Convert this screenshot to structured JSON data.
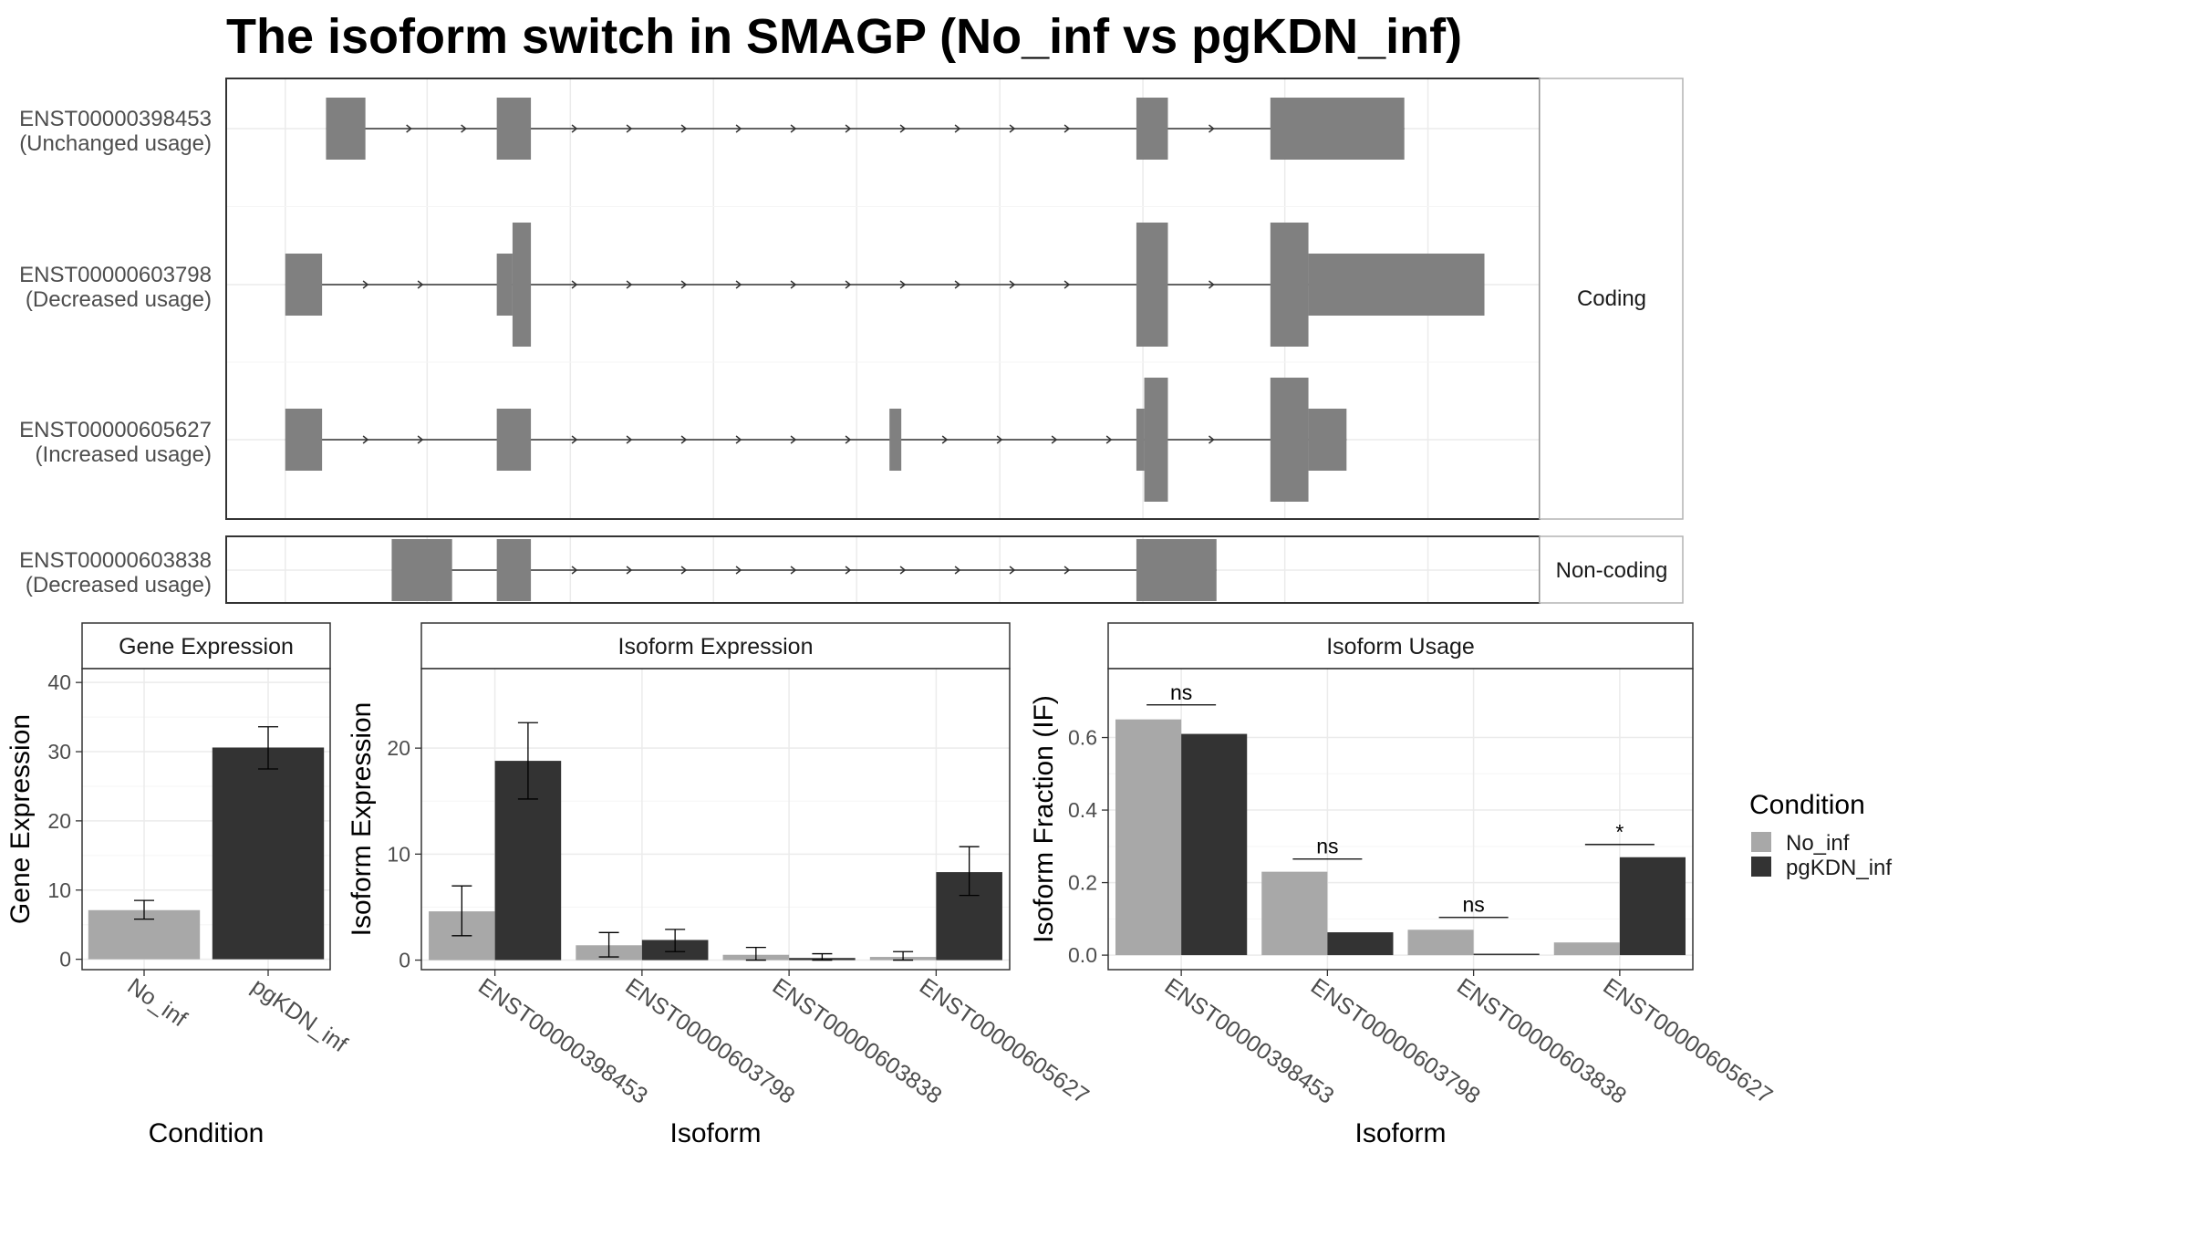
{
  "title": "The isoform switch in SMAGP (No_inf vs pgKDN_inf)",
  "colors": {
    "no_inf": "#a8a8a8",
    "pgkdn_inf": "#333333",
    "exon": "#808080",
    "grid": "#ebebeb",
    "border": "#333333",
    "strip_border": "#b3b3b3"
  },
  "structure": {
    "strips": {
      "coding": "Coding",
      "noncoding": "Non-coding"
    },
    "genome_range": [
      0,
      100
    ],
    "isoforms": [
      {
        "id": "ENST00000398453",
        "usage": "(Unchanged usage)",
        "group": "coding",
        "exons": [
          {
            "start": 7.6,
            "end": 10.6,
            "height": "utr"
          },
          {
            "start": 20.6,
            "end": 23.2,
            "height": "utr"
          },
          {
            "start": 69.3,
            "end": 71.7,
            "height": "utr"
          },
          {
            "start": 79.5,
            "end": 89.7,
            "height": "utr"
          }
        ]
      },
      {
        "id": "ENST00000603798",
        "usage": "(Decreased usage)",
        "group": "coding",
        "exons": [
          {
            "start": 4.5,
            "end": 7.3,
            "height": "utr"
          },
          {
            "start": 20.6,
            "end": 21.8,
            "height": "utr"
          },
          {
            "start": 21.8,
            "end": 23.2,
            "height": "cds"
          },
          {
            "start": 69.3,
            "end": 71.7,
            "height": "cds"
          },
          {
            "start": 79.5,
            "end": 82.4,
            "height": "cds"
          },
          {
            "start": 82.4,
            "end": 95.8,
            "height": "utr"
          }
        ]
      },
      {
        "id": "ENST00000605627",
        "usage": "(Increased usage)",
        "group": "coding",
        "exons": [
          {
            "start": 4.5,
            "end": 7.3,
            "height": "utr"
          },
          {
            "start": 20.6,
            "end": 23.2,
            "height": "utr"
          },
          {
            "start": 50.5,
            "end": 51.4,
            "height": "utr"
          },
          {
            "start": 69.3,
            "end": 69.9,
            "height": "utr"
          },
          {
            "start": 69.9,
            "end": 71.7,
            "height": "cds"
          },
          {
            "start": 79.5,
            "end": 82.4,
            "height": "cds"
          },
          {
            "start": 82.4,
            "end": 85.3,
            "height": "utr"
          }
        ]
      },
      {
        "id": "ENST00000603838",
        "usage": "(Decreased usage)",
        "group": "noncoding",
        "exons": [
          {
            "start": 12.6,
            "end": 17.2,
            "height": "utr"
          },
          {
            "start": 20.6,
            "end": 23.2,
            "height": "utr"
          },
          {
            "start": 69.3,
            "end": 75.4,
            "height": "utr"
          }
        ]
      }
    ]
  },
  "chart_data": [
    {
      "type": "bar",
      "title": "Gene Expression",
      "xlabel": "Condition",
      "ylabel": "Gene Expression",
      "ylim": [
        -1.5,
        42
      ],
      "yticks": [
        0,
        10,
        20,
        30,
        40
      ],
      "categories": [
        "No_inf",
        "pgKDN_inf"
      ],
      "series": [
        {
          "name": "No_inf",
          "values": [
            7.1,
            null
          ],
          "err_low": [
            5.8,
            null
          ],
          "err_high": [
            8.5,
            null
          ]
        },
        {
          "name": "pgKDN_inf",
          "values": [
            null,
            30.6
          ],
          "err_low": [
            null,
            27.5
          ],
          "err_high": [
            null,
            33.6
          ]
        }
      ]
    },
    {
      "type": "bar",
      "title": "Isoform Expression",
      "xlabel": "Isoform",
      "ylabel": "Isoform Expression",
      "ylim": [
        -0.9,
        27.5
      ],
      "yticks": [
        0,
        10,
        20
      ],
      "categories": [
        "ENST00000398453",
        "ENST00000603798",
        "ENST00000603838",
        "ENST00000605627"
      ],
      "series": [
        {
          "name": "No_inf",
          "values": [
            4.6,
            1.4,
            0.5,
            0.3
          ],
          "err_low": [
            2.3,
            0.3,
            0.0,
            0.0
          ],
          "err_high": [
            7.0,
            2.6,
            1.2,
            0.8
          ]
        },
        {
          "name": "pgKDN_inf",
          "values": [
            18.8,
            1.9,
            0.2,
            8.3
          ],
          "err_low": [
            15.2,
            0.8,
            0.0,
            6.1
          ],
          "err_high": [
            22.4,
            2.9,
            0.6,
            10.7
          ]
        }
      ]
    },
    {
      "type": "bar",
      "title": "Isoform Usage",
      "xlabel": "Isoform",
      "ylabel": "Isoform Fraction (IF)",
      "ylim": [
        -0.04,
        0.79
      ],
      "yticks": [
        0.0,
        0.2,
        0.4,
        0.6
      ],
      "ytick_labels": [
        "0.0",
        "0.2",
        "0.4",
        "0.6"
      ],
      "categories": [
        "ENST00000398453",
        "ENST00000603798",
        "ENST00000603838",
        "ENST00000605627"
      ],
      "series": [
        {
          "name": "No_inf",
          "values": [
            0.65,
            0.23,
            0.07,
            0.035
          ]
        },
        {
          "name": "pgKDN_inf",
          "values": [
            0.61,
            0.063,
            0.004,
            0.27
          ]
        }
      ],
      "significance": [
        {
          "label": "ns",
          "y": 0.69
        },
        {
          "label": "ns",
          "y": 0.265
        },
        {
          "label": "ns",
          "y": 0.104
        },
        {
          "label": "*",
          "y": 0.305
        }
      ]
    }
  ],
  "legend": {
    "title": "Condition",
    "items": [
      {
        "label": "No_inf",
        "color": "#a8a8a8"
      },
      {
        "label": "pgKDN_inf",
        "color": "#333333"
      }
    ]
  }
}
